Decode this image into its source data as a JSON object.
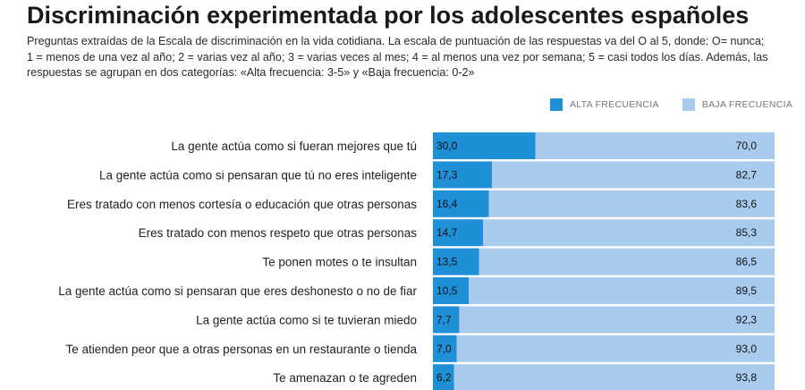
{
  "header": {
    "title": "Discriminación experimentada por los adolescentes españoles",
    "subtitle": "Preguntas extraídas de la Escala de discriminación en la vida cotidiana. La escala de puntuación de las respuestas va del O al 5, donde: O= nunca; 1 = menos de una vez al año; 2 = varias vez al año; 3 = varias veces al mes; 4 = al menos una vez por semana; 5 = casi todos los días. Además, las respuestas se agrupan en dos categorías: «Alta frecuencia: 3-5» y «Baja frecuencia: 0-2»"
  },
  "colors": {
    "alta": "#1f8fd6",
    "baja": "#a9cbee"
  },
  "chart_data": {
    "type": "bar",
    "orientation": "horizontal",
    "stacked": true,
    "title": "Discriminación experimentada por los adolescentes españoles",
    "legend_position": "top-right",
    "xlim": [
      0,
      100
    ],
    "categories": [
      "La gente actúa como si fueran mejores que tú",
      "La gente actúa como si pensaran que tú no eres inteligente",
      "Eres tratado con menos cortesía o educación que otras personas",
      "Eres tratado con menos respeto que otras personas",
      "Te ponen motes o te insultan",
      "La gente actúa como si pensaran que eres deshonesto o no de fiar",
      "La gente actúa como si te tuvieran miedo",
      "Te atienden peor que a otras personas en un restaurante o tienda",
      "Te amenazan o te agreden"
    ],
    "series": [
      {
        "name": "ALTA FRECUENCIA",
        "values": [
          30.0,
          17.3,
          16.4,
          14.7,
          13.5,
          10.5,
          7.7,
          7.0,
          6.2
        ],
        "labels": [
          "30,0",
          "17,3",
          "16,4",
          "14,7",
          "13,5",
          "10,5",
          "7,7",
          "7,0",
          "6,2"
        ]
      },
      {
        "name": "BAJA FRECUENCIA",
        "values": [
          70.0,
          82.7,
          83.6,
          85.3,
          86.5,
          89.5,
          92.3,
          93.0,
          93.8
        ],
        "labels": [
          "70,0",
          "82,7",
          "83,6",
          "85,3",
          "86,5",
          "89,5",
          "92,3",
          "93,0",
          "93,8"
        ]
      }
    ]
  }
}
